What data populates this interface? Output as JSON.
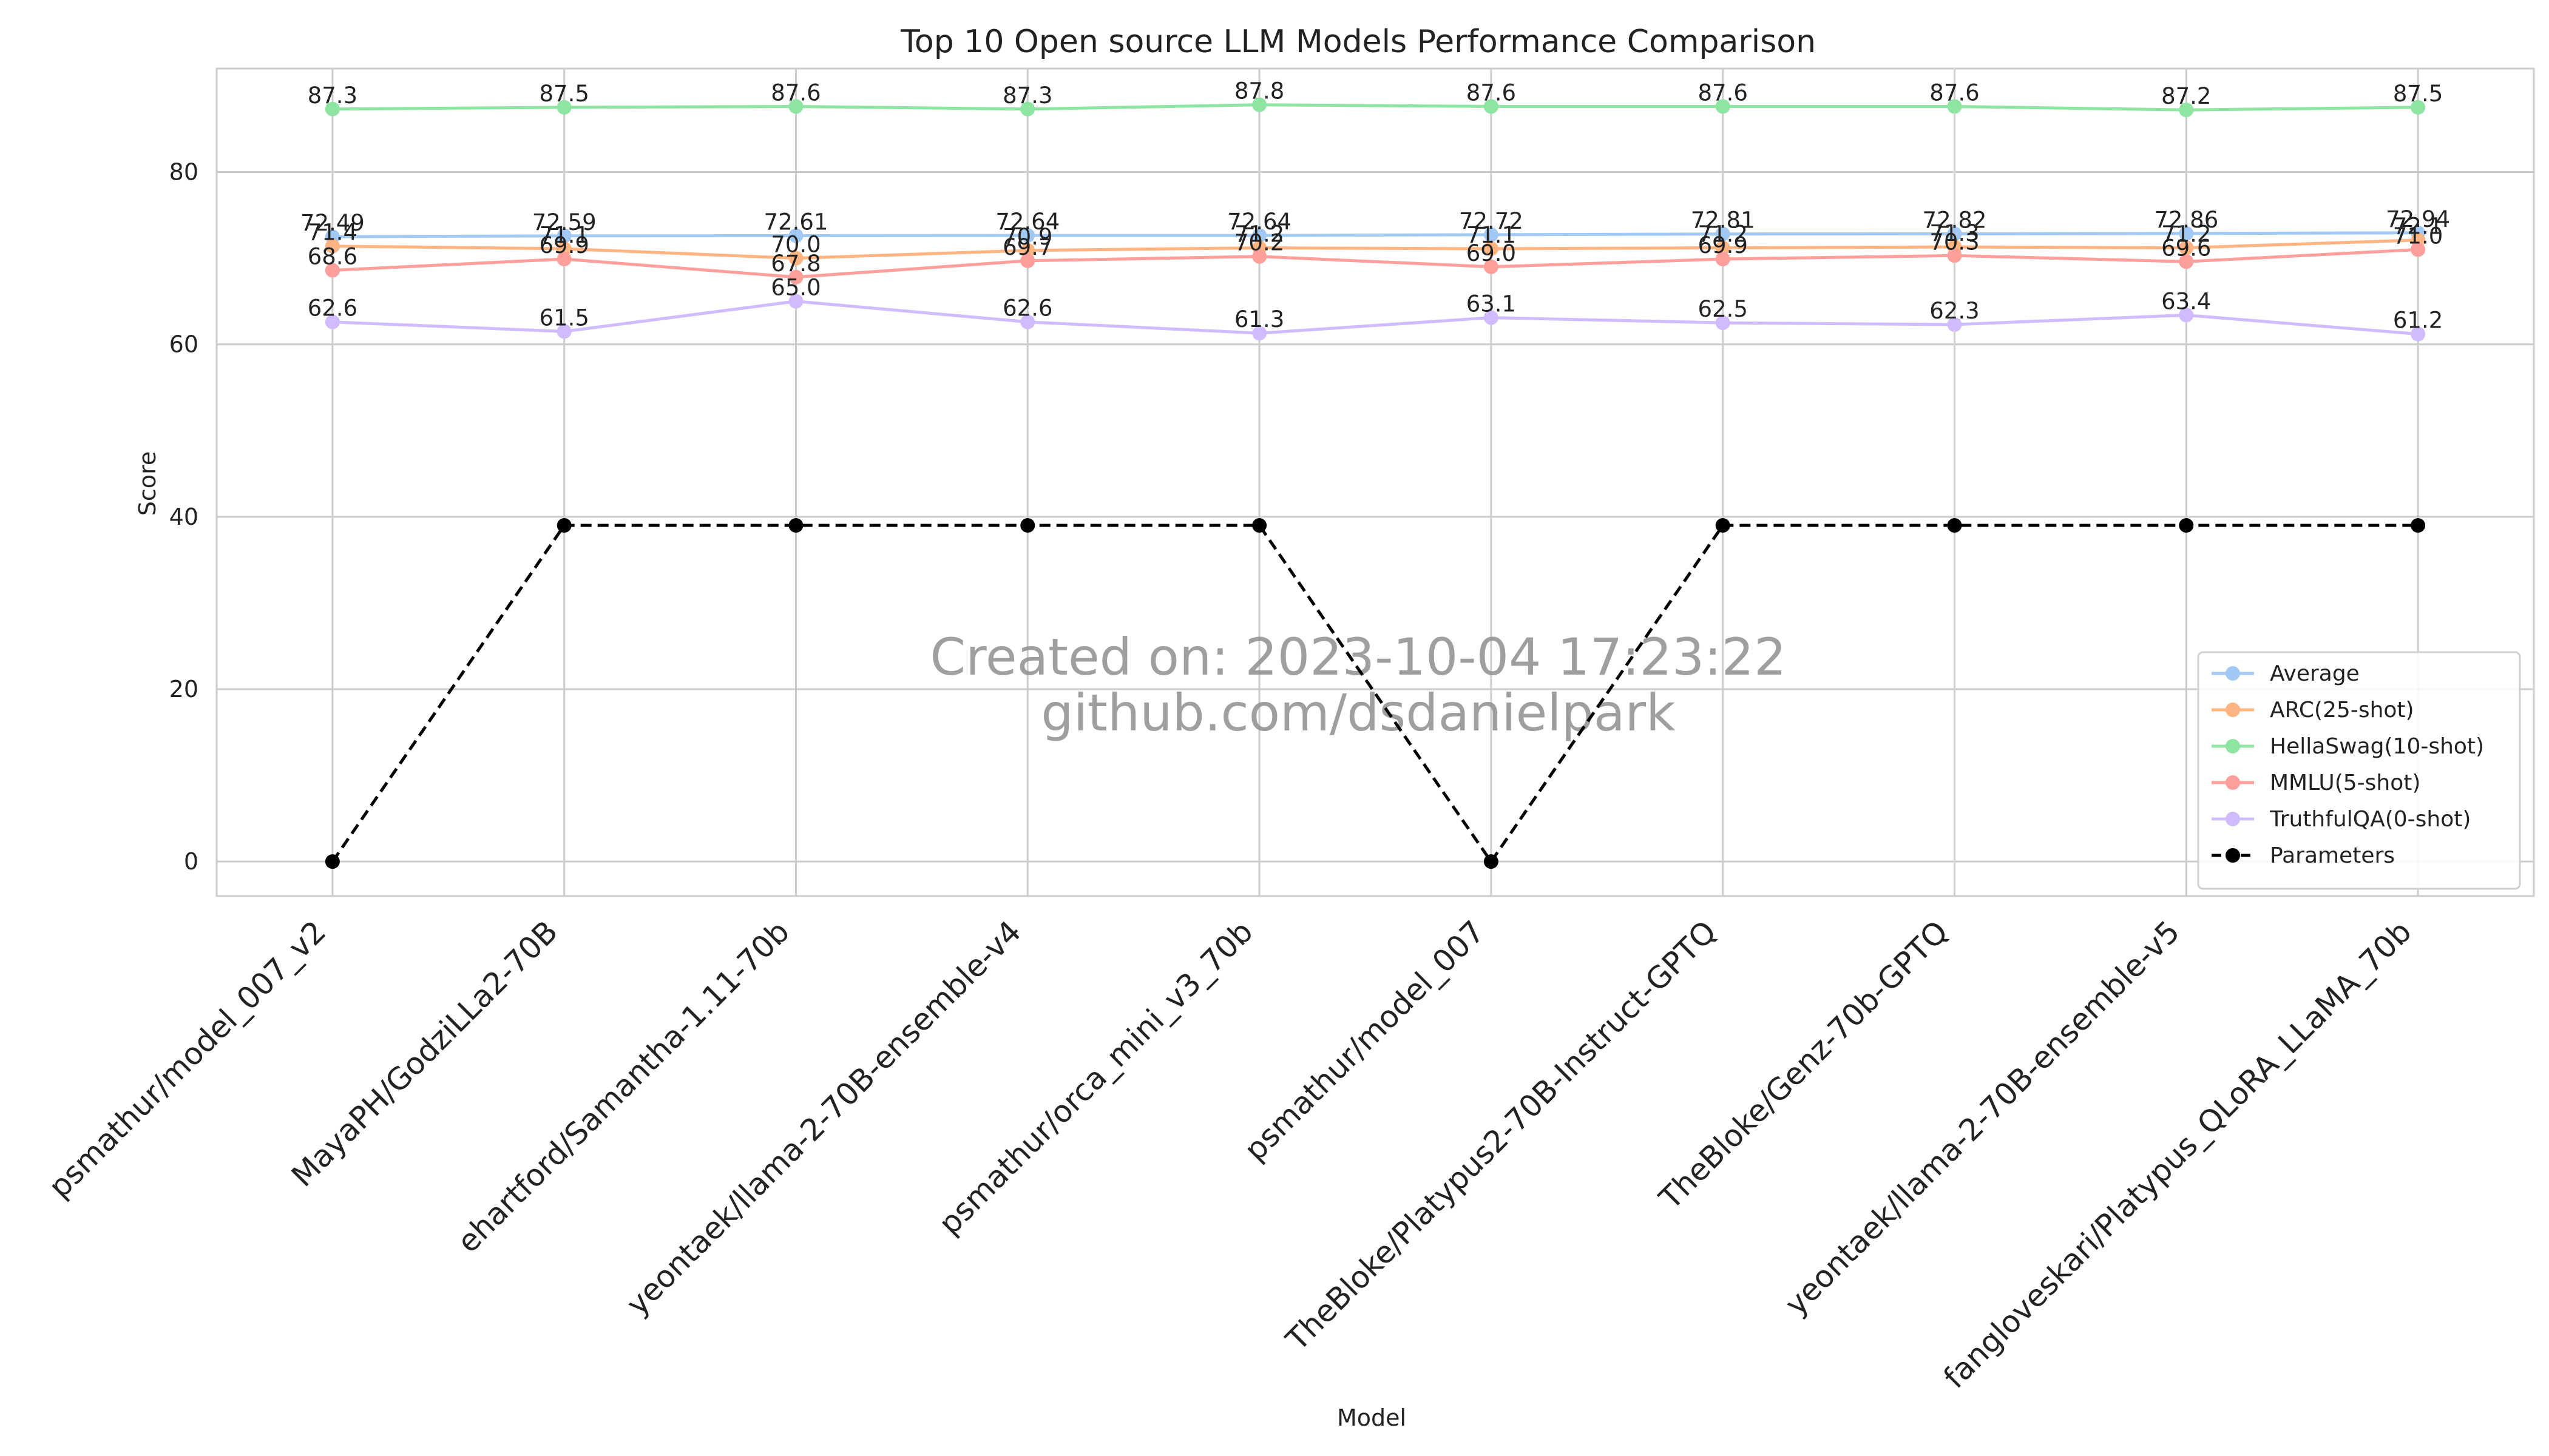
{
  "chart_data": {
    "type": "line",
    "title": "Top 10 Open source LLM Models Performance Comparison",
    "xlabel": "Model",
    "ylabel": "Score",
    "ylim": [
      -4,
      92
    ],
    "yticks": [
      0,
      20,
      40,
      60,
      80
    ],
    "grid": true,
    "legend_position": "lower-right",
    "categories": [
      "psmathur/model_007_v2",
      "MayaPH/GodziLLa2-70B",
      "ehartford/Samantha-1.11-70b",
      "yeontaek/llama-2-70B-ensemble-v4",
      "psmathur/orca_mini_v3_70b",
      "psmathur/model_007",
      "TheBloke/Platypus2-70B-Instruct-GPTQ",
      "TheBloke/Genz-70b-GPTQ",
      "yeontaek/llama-2-70B-ensemble-v5",
      "fangloveskari/Platypus_QLoRA_LLaMA_70b"
    ],
    "series": [
      {
        "name": "Average",
        "color": "#a1c9f4",
        "style": "solid",
        "values": [
          72.49,
          72.59,
          72.61,
          72.64,
          72.64,
          72.72,
          72.81,
          72.82,
          72.86,
          72.94
        ],
        "labels": [
          "72.49",
          "72.59",
          "72.61",
          "72.64",
          "72.64",
          "72.72",
          "72.81",
          "72.82",
          "72.86",
          "72.94"
        ]
      },
      {
        "name": "ARC(25-shot)",
        "color": "#ffb482",
        "style": "solid",
        "values": [
          71.4,
          71.1,
          70.0,
          70.9,
          71.2,
          71.1,
          71.2,
          71.3,
          71.2,
          72.1
        ],
        "labels": [
          "71.4",
          "71.1",
          "70.0",
          "70.9",
          "71.2",
          "71.1",
          "71.2",
          "71.3",
          "71.2",
          "72.1"
        ]
      },
      {
        "name": "HellaSwag(10-shot)",
        "color": "#8de5a1",
        "style": "solid",
        "values": [
          87.3,
          87.5,
          87.6,
          87.3,
          87.8,
          87.6,
          87.6,
          87.6,
          87.2,
          87.5
        ],
        "labels": [
          "87.3",
          "87.5",
          "87.6",
          "87.3",
          "87.8",
          "87.6",
          "87.6",
          "87.6",
          "87.2",
          "87.5"
        ]
      },
      {
        "name": "MMLU(5-shot)",
        "color": "#ff9f9b",
        "style": "solid",
        "values": [
          68.6,
          69.9,
          67.8,
          69.7,
          70.2,
          69.0,
          69.9,
          70.3,
          69.6,
          71.0
        ],
        "labels": [
          "68.6",
          "69.9",
          "67.8",
          "69.7",
          "70.2",
          "69.0",
          "69.9",
          "70.3",
          "69.6",
          "71.0"
        ]
      },
      {
        "name": "TruthfulQA(0-shot)",
        "color": "#d0bbff",
        "style": "solid",
        "values": [
          62.6,
          61.5,
          65.0,
          62.6,
          61.3,
          63.1,
          62.5,
          62.3,
          63.4,
          61.2
        ],
        "labels": [
          "62.6",
          "61.5",
          "65.0",
          "62.6",
          "61.3",
          "63.1",
          "62.5",
          "62.3",
          "63.4",
          "61.2"
        ]
      },
      {
        "name": "Parameters",
        "color": "#000000",
        "style": "dashed",
        "values": [
          0,
          39,
          39,
          39,
          39,
          0,
          39,
          39,
          39,
          39
        ],
        "labels": []
      }
    ],
    "watermark": [
      "Created on: 2023-10-04 17:23:22",
      "github.com/dsdanielpark"
    ]
  }
}
